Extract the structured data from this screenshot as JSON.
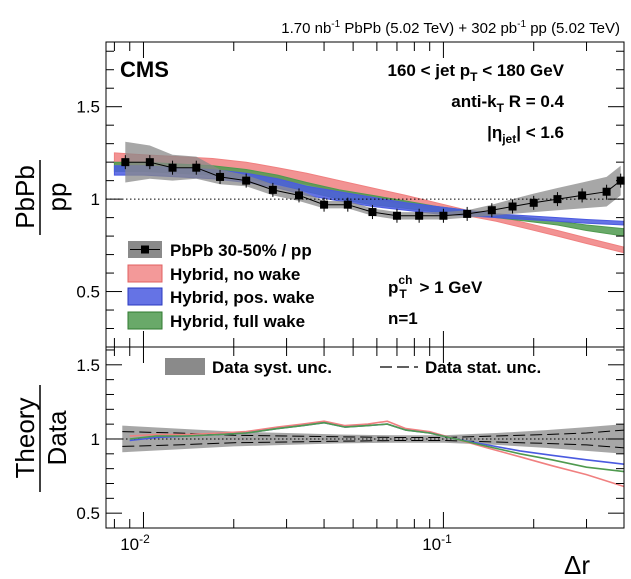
{
  "header": {
    "lumi_a": "1.70 nb",
    "lumi_a_exp": "-1",
    "lumi_a_rest": " PbPb (5.02 TeV) + 302 pb",
    "lumi_b_exp": "-1",
    "lumi_b_rest": " pp (5.02 TeV)"
  },
  "labels": {
    "cms": "CMS",
    "cut_pre": "160 < jet p",
    "cut_sub": "T",
    "cut_post": " < 180 GeV",
    "algo_pre": "anti-k",
    "algo_sub": "T",
    "algo_post": " R = 0.4",
    "eta_pre": "|η",
    "eta_sub": "jet",
    "eta_post": "| < 1.6",
    "pt_pre": "p",
    "pt_sup": "ch",
    "pt_sub": "T",
    "pt_post": " > 1 GeV",
    "n_label": "n=1"
  },
  "legend_top": {
    "data": "PbPb 30-50% / pp",
    "no_wake": "Hybrid, no wake",
    "pos_wake": "Hybrid, pos. wake",
    "full_wake": "Hybrid, full wake"
  },
  "legend_bottom": {
    "syst": "Data syst. unc.",
    "stat": "Data stat. unc."
  },
  "axes": {
    "top_ylabel_num": "PbPb",
    "top_ylabel_den": "pp",
    "bottom_ylabel_num": "Theory",
    "bottom_ylabel_den": "Data",
    "xlabel": "Δr",
    "xtick_1": "10",
    "xtick_1_exp": "-2",
    "xtick_2": "10",
    "xtick_2_exp": "-1",
    "top_yticks": [
      "0.5",
      "1",
      "1.5"
    ],
    "bottom_yticks": [
      "0.5",
      "1",
      "1.5"
    ]
  },
  "colors": {
    "no_wake": "#f08080",
    "pos_wake": "#4a5ae0",
    "full_wake": "#4f9a4f",
    "syst_band": "#8a8a8a",
    "data": "#000000"
  },
  "chart_data": [
    {
      "type": "line",
      "panel": "top",
      "xscale": "log",
      "xlim": [
        0.0075,
        0.4
      ],
      "ylim": [
        0.2,
        1.85
      ],
      "xlabel": "Δr",
      "ylabel": "PbPb/pp",
      "reference_line": 1.0,
      "data_points": {
        "name": "PbPb 30-50% / pp",
        "x": [
          0.0087,
          0.0105,
          0.0125,
          0.015,
          0.018,
          0.022,
          0.027,
          0.033,
          0.04,
          0.048,
          0.058,
          0.07,
          0.083,
          0.1,
          0.12,
          0.145,
          0.17,
          0.2,
          0.24,
          0.29,
          0.35,
          0.39
        ],
        "y": [
          1.2,
          1.2,
          1.17,
          1.17,
          1.12,
          1.1,
          1.05,
          1.02,
          0.97,
          0.97,
          0.93,
          0.91,
          0.91,
          0.91,
          0.92,
          0.94,
          0.96,
          0.98,
          1.0,
          1.02,
          1.04,
          1.1
        ],
        "syst_lo": [
          1.09,
          1.11,
          1.1,
          1.11,
          1.08,
          1.07,
          1.02,
          0.99,
          0.95,
          0.95,
          0.91,
          0.89,
          0.89,
          0.89,
          0.9,
          0.91,
          0.92,
          0.93,
          0.94,
          0.95,
          0.96,
          1.02
        ],
        "syst_hi": [
          1.31,
          1.29,
          1.24,
          1.23,
          1.16,
          1.13,
          1.08,
          1.05,
          0.99,
          0.99,
          0.95,
          0.93,
          0.93,
          0.93,
          0.94,
          0.97,
          1.0,
          1.03,
          1.06,
          1.09,
          1.12,
          1.18
        ]
      },
      "series": [
        {
          "name": "Hybrid, no wake",
          "x": [
            0.008,
            0.01,
            0.013,
            0.017,
            0.022,
            0.028,
            0.035,
            0.045,
            0.058,
            0.075,
            0.095,
            0.12,
            0.15,
            0.19,
            0.24,
            0.3,
            0.4
          ],
          "lo": [
            1.19,
            1.18,
            1.17,
            1.16,
            1.14,
            1.11,
            1.08,
            1.04,
            1.0,
            0.97,
            0.94,
            0.91,
            0.88,
            0.84,
            0.8,
            0.76,
            0.71
          ],
          "hi": [
            1.25,
            1.24,
            1.23,
            1.22,
            1.2,
            1.17,
            1.14,
            1.1,
            1.06,
            1.02,
            0.98,
            0.94,
            0.91,
            0.87,
            0.83,
            0.79,
            0.74
          ]
        },
        {
          "name": "Hybrid, pos. wake",
          "x": [
            0.008,
            0.01,
            0.013,
            0.017,
            0.022,
            0.028,
            0.035,
            0.045,
            0.058,
            0.075,
            0.095,
            0.12,
            0.15,
            0.19,
            0.24,
            0.3,
            0.4
          ],
          "lo": [
            1.13,
            1.13,
            1.12,
            1.11,
            1.09,
            1.06,
            1.02,
            0.99,
            0.96,
            0.94,
            0.92,
            0.91,
            0.9,
            0.89,
            0.88,
            0.87,
            0.86
          ],
          "hi": [
            1.18,
            1.18,
            1.17,
            1.16,
            1.14,
            1.11,
            1.07,
            1.04,
            1.01,
            0.98,
            0.96,
            0.94,
            0.92,
            0.91,
            0.9,
            0.89,
            0.88
          ]
        },
        {
          "name": "Hybrid, full wake",
          "x": [
            0.008,
            0.01,
            0.013,
            0.017,
            0.022,
            0.028,
            0.035,
            0.045,
            0.058,
            0.075,
            0.095,
            0.12,
            0.15,
            0.19,
            0.24,
            0.3,
            0.4
          ],
          "lo": [
            1.15,
            1.15,
            1.14,
            1.13,
            1.11,
            1.08,
            1.04,
            1.0,
            0.97,
            0.95,
            0.93,
            0.92,
            0.9,
            0.88,
            0.86,
            0.83,
            0.8
          ],
          "hi": [
            1.2,
            1.2,
            1.19,
            1.18,
            1.16,
            1.13,
            1.09,
            1.05,
            1.02,
            0.99,
            0.96,
            0.94,
            0.92,
            0.9,
            0.88,
            0.86,
            0.84
          ]
        }
      ]
    },
    {
      "type": "line",
      "panel": "bottom",
      "xscale": "log",
      "xlim": [
        0.0075,
        0.4
      ],
      "ylim": [
        0.4,
        1.62
      ],
      "xlabel": "Δr",
      "ylabel": "Theory/Data",
      "reference_line": 1.0,
      "syst_band": {
        "x": [
          0.0085,
          0.013,
          0.02,
          0.03,
          0.045,
          0.07,
          0.1,
          0.15,
          0.22,
          0.3,
          0.4
        ],
        "lo": [
          0.91,
          0.93,
          0.95,
          0.96,
          0.97,
          0.975,
          0.975,
          0.96,
          0.94,
          0.92,
          0.9
        ],
        "hi": [
          1.09,
          1.07,
          1.05,
          1.04,
          1.03,
          1.025,
          1.025,
          1.04,
          1.06,
          1.08,
          1.1
        ]
      },
      "stat_band": {
        "x": [
          0.0085,
          0.013,
          0.02,
          0.03,
          0.045,
          0.07,
          0.1,
          0.15,
          0.22,
          0.3,
          0.4
        ],
        "lo": [
          0.95,
          0.96,
          0.975,
          0.98,
          0.985,
          0.99,
          0.99,
          0.98,
          0.97,
          0.96,
          0.94
        ],
        "hi": [
          1.05,
          1.04,
          1.025,
          1.02,
          1.015,
          1.01,
          1.01,
          1.02,
          1.03,
          1.04,
          1.06
        ]
      },
      "series": [
        {
          "name": "Hybrid, no wake",
          "x": [
            0.009,
            0.011,
            0.014,
            0.018,
            0.022,
            0.028,
            0.034,
            0.04,
            0.047,
            0.056,
            0.065,
            0.075,
            0.09,
            0.11,
            0.14,
            0.18,
            0.23,
            0.3,
            0.4
          ],
          "y": [
            1.02,
            1.03,
            1.03,
            1.04,
            1.05,
            1.08,
            1.1,
            1.12,
            1.09,
            1.1,
            1.12,
            1.07,
            1.05,
            1.0,
            0.94,
            0.88,
            0.82,
            0.76,
            0.68
          ]
        },
        {
          "name": "Hybrid, pos. wake",
          "x": [
            0.009,
            0.011,
            0.014,
            0.018,
            0.022,
            0.028,
            0.034,
            0.04,
            0.047,
            0.056,
            0.065,
            0.075,
            0.09,
            0.11,
            0.14,
            0.18,
            0.23,
            0.3,
            0.4
          ],
          "y": [
            0.99,
            1.01,
            1.02,
            1.03,
            1.04,
            1.07,
            1.09,
            1.11,
            1.08,
            1.09,
            1.1,
            1.06,
            1.04,
            1.0,
            0.96,
            0.92,
            0.89,
            0.86,
            0.83
          ]
        },
        {
          "name": "Hybrid, full wake",
          "x": [
            0.009,
            0.011,
            0.014,
            0.018,
            0.022,
            0.028,
            0.034,
            0.04,
            0.047,
            0.056,
            0.065,
            0.075,
            0.09,
            0.11,
            0.14,
            0.18,
            0.23,
            0.3,
            0.4
          ],
          "y": [
            1.0,
            1.02,
            1.02,
            1.03,
            1.04,
            1.07,
            1.09,
            1.11,
            1.08,
            1.09,
            1.1,
            1.06,
            1.04,
            1.0,
            0.95,
            0.9,
            0.86,
            0.81,
            0.78
          ]
        }
      ]
    }
  ]
}
